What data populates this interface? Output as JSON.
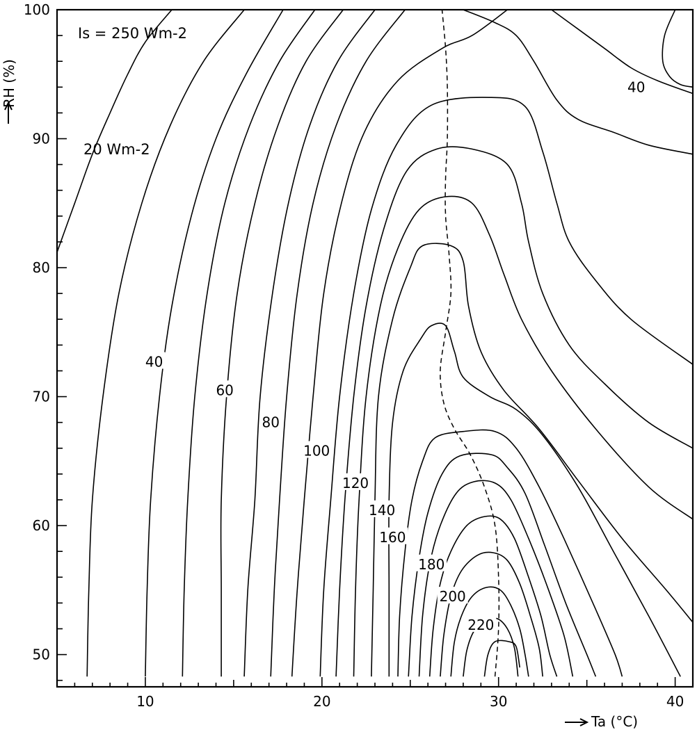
{
  "chart_data": {
    "type": "contour",
    "ylabel": "RH (%)",
    "xlabel": "Ta (°C)",
    "xlim": [
      5,
      41
    ],
    "ylim": [
      47.5,
      100
    ],
    "xticks": [
      10,
      20,
      30,
      40
    ],
    "yticks": [
      50,
      60,
      70,
      80,
      90,
      100
    ],
    "grid": false,
    "annotations": {
      "top_label": "Is = 250 Wm-2",
      "low_label": "20 Wm-2"
    },
    "level_labels": [
      {
        "text": "40",
        "x": 10.5,
        "y": 72.7
      },
      {
        "text": "60",
        "x": 14.5,
        "y": 70.5
      },
      {
        "text": "80",
        "x": 17.1,
        "y": 68.0
      },
      {
        "text": "100",
        "x": 19.7,
        "y": 65.8
      },
      {
        "text": "120",
        "x": 21.9,
        "y": 63.3
      },
      {
        "text": "140",
        "x": 23.4,
        "y": 61.2
      },
      {
        "text": "160",
        "x": 24.0,
        "y": 59.1
      },
      {
        "text": "180",
        "x": 26.2,
        "y": 57.0
      },
      {
        "text": "200",
        "x": 27.4,
        "y": 54.5
      },
      {
        "text": "220",
        "x": 29.0,
        "y": 52.3
      },
      {
        "text": "40",
        "x": 37.8,
        "y": 94.0
      }
    ],
    "series": [
      {
        "points": [
          [
            5.0,
            81.2
          ],
          [
            6.0,
            85.0
          ],
          [
            7.0,
            88.8
          ],
          [
            8.0,
            92.0
          ],
          [
            9.0,
            95.0
          ],
          [
            10.0,
            97.5
          ],
          [
            11.5,
            100.0
          ]
        ]
      },
      {
        "points": [
          [
            6.7,
            48.3
          ],
          [
            6.8,
            55.0
          ],
          [
            7.0,
            62.0
          ],
          [
            7.6,
            70.0
          ],
          [
            8.5,
            78.0
          ],
          [
            9.8,
            85.0
          ],
          [
            11.4,
            91.0
          ],
          [
            13.3,
            96.0
          ],
          [
            15.6,
            100.0
          ]
        ]
      },
      {
        "points": [
          [
            10.0,
            48.3
          ],
          [
            10.1,
            55.0
          ],
          [
            10.3,
            62.0
          ],
          [
            10.8,
            70.0
          ],
          [
            11.5,
            77.0
          ],
          [
            12.6,
            84.0
          ],
          [
            14.0,
            90.0
          ],
          [
            15.7,
            95.0
          ],
          [
            17.8,
            100.0
          ]
        ]
      },
      {
        "points": [
          [
            12.1,
            48.3
          ],
          [
            12.2,
            55.0
          ],
          [
            12.4,
            62.0
          ],
          [
            12.8,
            70.0
          ],
          [
            13.5,
            78.0
          ],
          [
            14.5,
            85.0
          ],
          [
            15.9,
            91.0
          ],
          [
            17.6,
            96.0
          ],
          [
            19.6,
            100.0
          ]
        ]
      },
      {
        "points": [
          [
            14.3,
            48.3
          ],
          [
            14.3,
            55.0
          ],
          [
            14.3,
            62.0
          ],
          [
            14.6,
            70.0
          ],
          [
            15.2,
            78.0
          ],
          [
            16.2,
            85.0
          ],
          [
            17.5,
            91.0
          ],
          [
            19.1,
            96.0
          ],
          [
            21.2,
            100.0
          ]
        ]
      },
      {
        "points": [
          [
            15.6,
            48.3
          ],
          [
            15.8,
            55.0
          ],
          [
            16.2,
            62.0
          ],
          [
            16.5,
            70.0
          ],
          [
            17.2,
            78.0
          ],
          [
            18.1,
            85.0
          ],
          [
            19.3,
            91.0
          ],
          [
            20.9,
            96.0
          ],
          [
            23.0,
            100.0
          ]
        ]
      },
      {
        "points": [
          [
            17.1,
            48.3
          ],
          [
            17.3,
            55.0
          ],
          [
            17.6,
            62.0
          ],
          [
            18.0,
            70.0
          ],
          [
            18.6,
            78.0
          ],
          [
            19.5,
            85.0
          ],
          [
            20.8,
            91.0
          ],
          [
            22.5,
            96.0
          ],
          [
            24.7,
            100.0
          ]
        ]
      },
      {
        "points": [
          [
            18.3,
            48.3
          ],
          [
            18.6,
            55.0
          ],
          [
            19.0,
            62.0
          ],
          [
            19.5,
            70.0
          ],
          [
            20.1,
            78.0
          ],
          [
            21.1,
            85.0
          ],
          [
            22.4,
            90.5
          ],
          [
            24.3,
            94.5
          ],
          [
            26.8,
            97.0
          ],
          [
            28.5,
            98.0
          ],
          [
            30.5,
            100.0
          ]
        ]
      },
      {
        "points": [
          [
            19.9,
            48.3
          ],
          [
            20.1,
            55.0
          ],
          [
            20.5,
            62.0
          ],
          [
            21.0,
            70.0
          ],
          [
            21.8,
            78.0
          ],
          [
            22.8,
            84.5
          ],
          [
            24.2,
            89.5
          ],
          [
            26.2,
            92.6
          ],
          [
            29.5,
            93.2
          ],
          [
            31.5,
            92.5
          ],
          [
            32.5,
            89.0
          ],
          [
            33.3,
            85.0
          ],
          [
            34.0,
            82.0
          ],
          [
            35.5,
            79.0
          ],
          [
            37.5,
            76.0
          ],
          [
            41.0,
            72.5
          ]
        ]
      },
      {
        "points": [
          [
            20.8,
            48.3
          ],
          [
            21.0,
            55.0
          ],
          [
            21.3,
            62.0
          ],
          [
            21.8,
            70.0
          ],
          [
            22.5,
            77.0
          ],
          [
            23.5,
            83.0
          ],
          [
            24.8,
            87.5
          ],
          [
            26.5,
            89.2
          ],
          [
            28.5,
            89.2
          ],
          [
            30.5,
            88.0
          ],
          [
            31.3,
            85.0
          ],
          [
            31.7,
            82.0
          ],
          [
            32.5,
            78.0
          ],
          [
            34.0,
            74.0
          ],
          [
            36.0,
            71.0
          ],
          [
            38.5,
            68.0
          ],
          [
            41.0,
            66.0
          ]
        ]
      },
      {
        "points": [
          [
            21.8,
            48.3
          ],
          [
            21.9,
            55.0
          ],
          [
            22.1,
            62.0
          ],
          [
            22.5,
            70.0
          ],
          [
            23.3,
            77.0
          ],
          [
            24.3,
            81.5
          ],
          [
            25.5,
            84.5
          ],
          [
            27.0,
            85.5
          ],
          [
            28.5,
            85.0
          ],
          [
            29.5,
            82.5
          ],
          [
            30.3,
            79.5
          ],
          [
            31.3,
            76.0
          ],
          [
            33.0,
            72.0
          ],
          [
            35.5,
            67.5
          ],
          [
            38.5,
            63.0
          ],
          [
            41.0,
            60.5
          ]
        ]
      },
      {
        "points": [
          [
            22.8,
            48.3
          ],
          [
            22.9,
            55.0
          ],
          [
            23.0,
            62.0
          ],
          [
            23.2,
            70.0
          ],
          [
            24.0,
            76.0
          ],
          [
            25.0,
            80.0
          ],
          [
            25.7,
            81.7
          ],
          [
            27.3,
            81.7
          ],
          [
            28.0,
            80.5
          ],
          [
            28.3,
            77.0
          ],
          [
            29.0,
            73.5
          ],
          [
            30.3,
            70.5
          ],
          [
            32.3,
            67.5
          ],
          [
            34.5,
            63.5
          ],
          [
            37.0,
            59.0
          ],
          [
            39.5,
            55.0
          ],
          [
            41.0,
            52.5
          ]
        ]
      },
      {
        "points": [
          [
            23.8,
            48.3
          ],
          [
            23.8,
            55.0
          ],
          [
            23.8,
            62.0
          ],
          [
            24.0,
            68.0
          ],
          [
            24.6,
            72.0
          ],
          [
            25.6,
            74.5
          ],
          [
            26.2,
            75.5
          ],
          [
            27.0,
            75.5
          ],
          [
            27.5,
            73.5
          ],
          [
            28.0,
            71.5
          ],
          [
            29.5,
            70.0
          ],
          [
            31.0,
            69.0
          ],
          [
            32.5,
            67.0
          ],
          [
            34.5,
            63.0
          ],
          [
            36.5,
            58.0
          ],
          [
            38.5,
            53.0
          ],
          [
            40.3,
            48.3
          ]
        ]
      },
      {
        "points": [
          [
            24.3,
            48.3
          ],
          [
            24.4,
            53.0
          ],
          [
            24.7,
            58.0
          ],
          [
            25.1,
            62.0
          ],
          [
            25.7,
            65.0
          ],
          [
            26.4,
            66.8
          ],
          [
            28.0,
            67.3
          ],
          [
            29.8,
            67.3
          ],
          [
            31.0,
            66.0
          ],
          [
            32.3,
            63.0
          ],
          [
            33.7,
            59.0
          ],
          [
            35.5,
            53.5
          ],
          [
            36.6,
            50.0
          ],
          [
            37.0,
            48.3
          ]
        ]
      },
      {
        "points": [
          [
            24.9,
            48.3
          ],
          [
            25.1,
            53.0
          ],
          [
            25.5,
            57.5
          ],
          [
            26.0,
            61.0
          ],
          [
            26.8,
            64.0
          ],
          [
            27.8,
            65.4
          ],
          [
            29.6,
            65.5
          ],
          [
            30.5,
            64.5
          ],
          [
            31.5,
            62.5
          ],
          [
            32.6,
            58.5
          ],
          [
            33.8,
            54.0
          ],
          [
            35.0,
            50.0
          ],
          [
            35.5,
            48.3
          ]
        ]
      },
      {
        "points": [
          [
            25.5,
            48.3
          ],
          [
            25.7,
            53.0
          ],
          [
            26.1,
            57.0
          ],
          [
            26.7,
            60.0
          ],
          [
            27.6,
            62.5
          ],
          [
            28.6,
            63.4
          ],
          [
            29.8,
            63.3
          ],
          [
            30.7,
            62.0
          ],
          [
            31.7,
            59.0
          ],
          [
            32.7,
            55.5
          ],
          [
            33.7,
            51.5
          ],
          [
            34.2,
            48.3
          ]
        ]
      },
      {
        "points": [
          [
            26.1,
            48.3
          ],
          [
            26.3,
            52.0
          ],
          [
            26.7,
            55.5
          ],
          [
            27.3,
            58.0
          ],
          [
            28.2,
            60.0
          ],
          [
            29.2,
            60.7
          ],
          [
            30.1,
            60.5
          ],
          [
            30.9,
            59.0
          ],
          [
            31.7,
            56.0
          ],
          [
            32.4,
            53.0
          ],
          [
            32.9,
            50.0
          ],
          [
            33.3,
            48.3
          ]
        ]
      },
      {
        "points": [
          [
            26.7,
            48.3
          ],
          [
            26.9,
            51.5
          ],
          [
            27.3,
            54.5
          ],
          [
            27.9,
            56.5
          ],
          [
            28.8,
            57.7
          ],
          [
            29.7,
            57.9
          ],
          [
            30.5,
            57.3
          ],
          [
            31.2,
            55.5
          ],
          [
            31.8,
            53.0
          ],
          [
            32.3,
            50.5
          ],
          [
            32.5,
            48.3
          ]
        ]
      },
      {
        "points": [
          [
            27.3,
            48.3
          ],
          [
            27.5,
            51.0
          ],
          [
            27.9,
            53.0
          ],
          [
            28.5,
            54.5
          ],
          [
            29.3,
            55.2
          ],
          [
            30.1,
            55.0
          ],
          [
            30.7,
            53.8
          ],
          [
            31.2,
            52.0
          ],
          [
            31.5,
            50.0
          ],
          [
            31.7,
            48.3
          ]
        ]
      },
      {
        "points": [
          [
            28.0,
            48.3
          ],
          [
            28.2,
            50.3
          ],
          [
            28.6,
            51.8
          ],
          [
            29.2,
            52.6
          ],
          [
            29.9,
            52.8
          ],
          [
            30.5,
            52.0
          ],
          [
            30.9,
            50.5
          ],
          [
            31.1,
            48.3
          ]
        ]
      },
      {
        "points": [
          [
            29.2,
            48.3
          ],
          [
            29.4,
            50.0
          ],
          [
            29.8,
            51.0
          ],
          [
            30.6,
            51.0
          ],
          [
            31.0,
            50.6
          ],
          [
            31.2,
            49.0
          ]
        ]
      },
      {
        "points": [
          [
            28.0,
            100.0
          ],
          [
            29.8,
            99.0
          ],
          [
            31.0,
            98.0
          ],
          [
            32.0,
            96.0
          ],
          [
            33.3,
            93.0
          ],
          [
            34.5,
            91.5
          ],
          [
            36.5,
            90.5
          ],
          [
            38.5,
            89.5
          ],
          [
            41.0,
            88.8
          ]
        ]
      },
      {
        "points": [
          [
            33.0,
            100.0
          ],
          [
            34.5,
            98.5
          ],
          [
            36.0,
            97.0
          ],
          [
            37.5,
            95.5
          ],
          [
            39.0,
            94.5
          ],
          [
            41.0,
            93.5
          ]
        ]
      },
      {
        "points": [
          [
            40.0,
            100.0
          ],
          [
            39.4,
            98.0
          ],
          [
            39.3,
            96.0
          ],
          [
            39.7,
            94.8
          ],
          [
            40.3,
            94.2
          ],
          [
            41.0,
            94.0
          ]
        ]
      }
    ],
    "ridge_line": [
      [
        29.8,
        48.3
      ],
      [
        30.0,
        52.0
      ],
      [
        30.0,
        56.0
      ],
      [
        29.8,
        60.0
      ],
      [
        29.2,
        63.0
      ],
      [
        28.4,
        65.5
      ],
      [
        27.5,
        67.5
      ],
      [
        26.9,
        69.5
      ],
      [
        26.7,
        72.0
      ],
      [
        27.0,
        75.0
      ],
      [
        27.3,
        78.0
      ],
      [
        27.2,
        81.0
      ],
      [
        27.0,
        84.0
      ],
      [
        27.0,
        87.0
      ],
      [
        27.1,
        90.0
      ],
      [
        27.1,
        94.0
      ],
      [
        27.0,
        97.0
      ],
      [
        26.8,
        100.0
      ]
    ]
  }
}
